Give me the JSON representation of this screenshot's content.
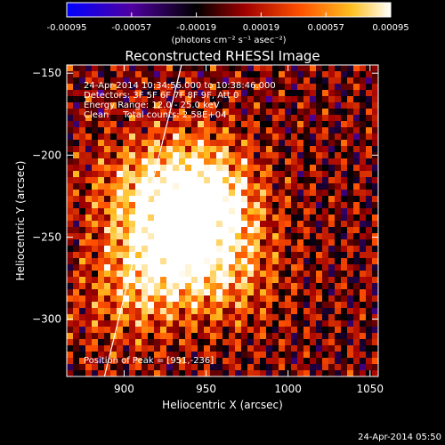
{
  "colorbar": {
    "ticks": [
      "-0.00095",
      "-0.00057",
      "-0.00019",
      "0.00019",
      "0.00057",
      "0.00095"
    ],
    "tick_values": [
      -0.00095,
      -0.00057,
      -0.00019,
      0.00019,
      0.00057,
      0.00095
    ],
    "unit_label": "(photons cm⁻² s⁻¹ asec⁻²)",
    "range": [
      -0.00095,
      0.00095
    ],
    "colormap": [
      "#0000ff",
      "#5000a0",
      "#000000",
      "#a00000",
      "#ff5000",
      "#ffc020",
      "#ffffff"
    ]
  },
  "chart_data": {
    "type": "heatmap",
    "title": "Reconstructed RHESSI Image",
    "xlabel": "Heliocentric X (arcsec)",
    "ylabel": "Heliocentric Y (arcsec)",
    "xlim": [
      865,
      1055
    ],
    "ylim": [
      -335,
      -145
    ],
    "x_ticks": [
      900,
      950,
      1000,
      1050
    ],
    "y_ticks": [
      -150,
      -200,
      -250,
      -300
    ],
    "x_tick_labels": [
      "900",
      "950",
      "1000",
      "1050"
    ],
    "y_tick_labels": [
      "−150",
      "−200",
      "−250",
      "−300"
    ],
    "peak": [
      951,
      -236
    ],
    "hotspots": [
      {
        "x": 951,
        "y": -236,
        "value": 0.00095
      },
      {
        "x": 925,
        "y": -262,
        "value": 0.0009
      },
      {
        "x": 910,
        "y": -222,
        "value": 0.0006
      },
      {
        "x": 945,
        "y": -210,
        "value": 0.0005
      },
      {
        "x": 965,
        "y": -275,
        "value": 0.00045
      },
      {
        "x": 900,
        "y": -290,
        "value": 0.00035
      }
    ],
    "limb_line": [
      [
        888,
        -335
      ],
      [
        935,
        -145
      ]
    ],
    "annotations": [
      "24-Apr-2014 10:34:56.000 to 10:38:46.000",
      "Detectors: 3F 5F 6F 7F 8F 9F, Att 0",
      "Energy Range: 12.0 - 25.0 keV",
      "Clean     Total counts: 2.58E+04"
    ],
    "peak_label": "Position of Peak = [951,-236]"
  },
  "timestamp": "24-Apr-2014 05:50"
}
